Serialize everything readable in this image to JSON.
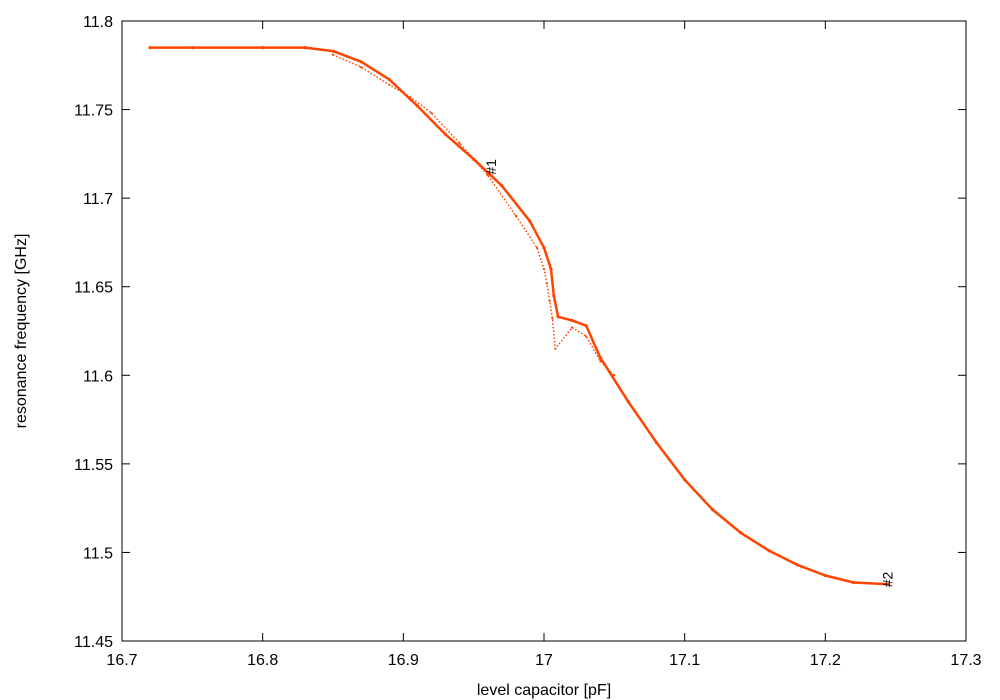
{
  "chart_data": {
    "type": "scatter",
    "title": "",
    "xlabel": "level capacitor [pF]",
    "ylabel": "resonance frequency [GHz]",
    "xlim": [
      16.7,
      17.3
    ],
    "ylim": [
      11.45,
      11.8
    ],
    "xticks": [
      "16.7",
      "16.8",
      "16.9",
      "17",
      "17.1",
      "17.2",
      "17.3"
    ],
    "yticks": [
      "11.45",
      "11.5",
      "11.55",
      "11.6",
      "11.65",
      "11.7",
      "11.75",
      "11.8"
    ],
    "grid": false,
    "series_color": "#ff4500",
    "series": [
      {
        "x": [
          16.72,
          16.75,
          16.8,
          16.83,
          16.85,
          16.87,
          16.89,
          16.91,
          16.93,
          16.95,
          16.97,
          16.99,
          17.0,
          17.005,
          17.007,
          17.01,
          17.02,
          17.03,
          17.04,
          17.06,
          17.08,
          17.1,
          17.12,
          17.14,
          17.16,
          17.18,
          17.2,
          17.22,
          17.245
        ],
        "y": [
          11.785,
          11.785,
          11.785,
          11.785,
          11.783,
          11.777,
          11.767,
          11.752,
          11.736,
          11.722,
          11.707,
          11.687,
          11.672,
          11.66,
          11.645,
          11.633,
          11.631,
          11.628,
          11.61,
          11.585,
          11.562,
          11.541,
          11.524,
          11.511,
          11.501,
          11.493,
          11.487,
          11.483,
          11.482
        ]
      },
      {
        "x": [
          16.85,
          16.87,
          16.89,
          16.905,
          16.92,
          16.94,
          16.96,
          16.98,
          16.995,
          17.0,
          17.002,
          17.004,
          17.006,
          17.008,
          17.02,
          17.03,
          17.04,
          17.05
        ],
        "y": [
          11.781,
          11.774,
          11.764,
          11.757,
          11.748,
          11.731,
          11.713,
          11.69,
          11.672,
          11.66,
          11.652,
          11.642,
          11.632,
          11.615,
          11.627,
          11.622,
          11.608,
          11.6
        ]
      }
    ],
    "annotations": [
      {
        "text": "#1",
        "x": 16.963,
        "y": 11.715
      },
      {
        "text": "#2",
        "x": 17.245,
        "y": 11.482
      }
    ]
  }
}
